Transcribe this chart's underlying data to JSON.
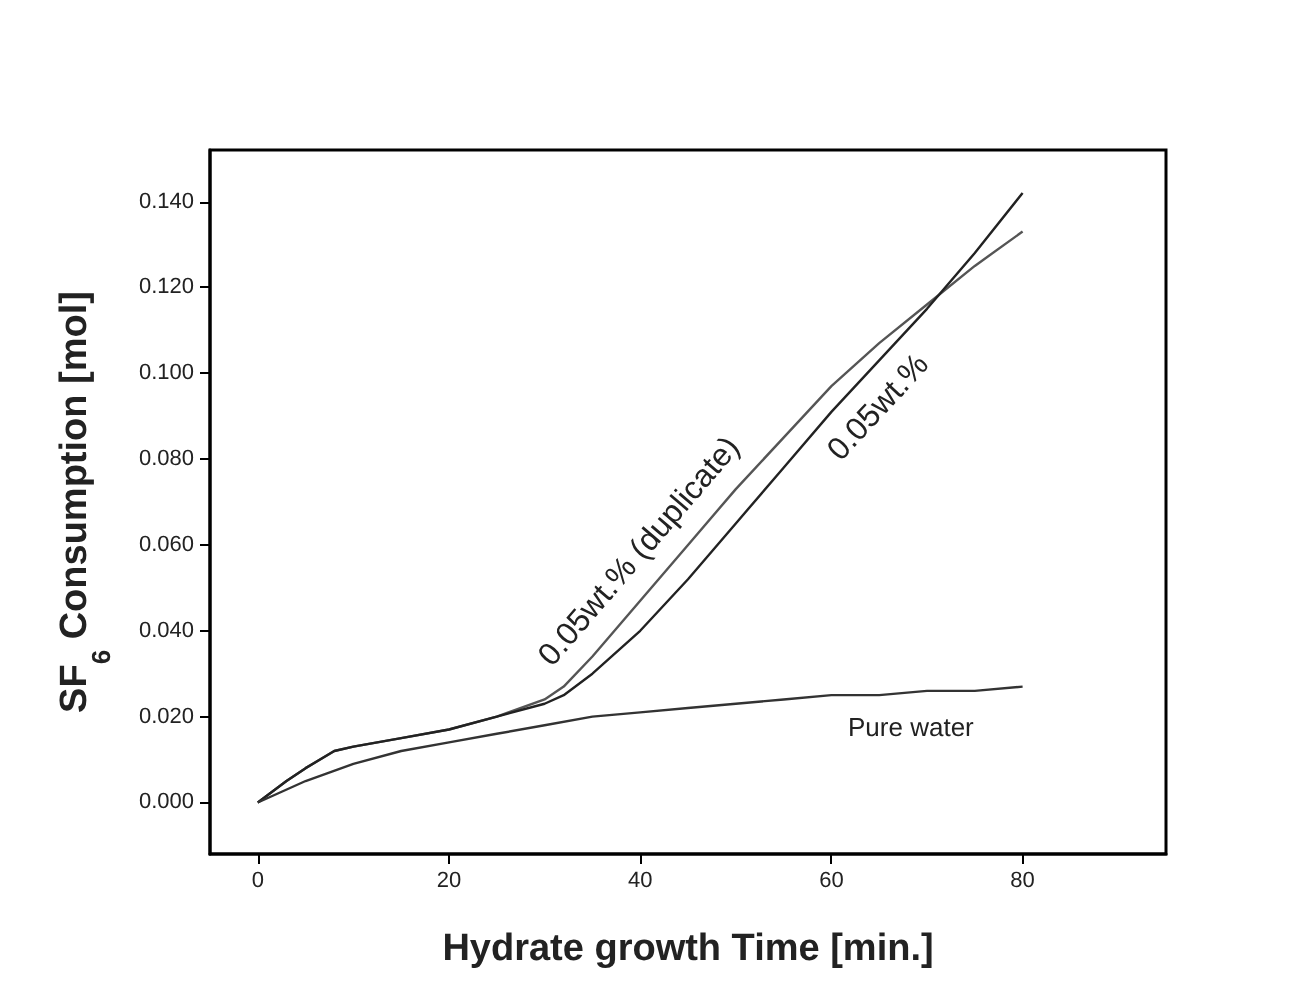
{
  "chart_data": {
    "type": "line",
    "xlabel": "Hydrate growth Time [min.]",
    "ylabel": "SF$_{6}$ Consumption [mol]",
    "xlim": [
      -5,
      95
    ],
    "xticks": [
      0,
      20,
      40,
      60,
      80
    ],
    "ylim": [
      -0.012,
      0.152
    ],
    "yticks": [
      {
        "value": 0,
        "label": "0.000"
      },
      {
        "value": 0.02,
        "label": "0.020"
      },
      {
        "value": 0.04,
        "label": "0.040"
      },
      {
        "value": 0.06,
        "label": "0.060"
      },
      {
        "value": 0.08,
        "label": "0.080"
      },
      {
        "value": 0.1,
        "label": "0.100"
      },
      {
        "value": 0.12,
        "label": "0.120"
      },
      {
        "value": 0.14,
        "label": "0.140"
      }
    ],
    "grid": false,
    "marker": "none",
    "line_style": "solid",
    "series": [
      {
        "name": "0.05wt.% (duplicate)",
        "color": "#555555",
        "x": [
          0,
          3,
          5,
          8,
          10,
          15,
          20,
          25,
          30,
          32,
          35,
          40,
          45,
          50,
          55,
          60,
          65,
          70,
          75,
          80
        ],
        "values": [
          0,
          0.005,
          0.008,
          0.012,
          0.013,
          0.015,
          0.017,
          0.02,
          0.024,
          0.027,
          0.034,
          0.047,
          0.06,
          0.073,
          0.085,
          0.097,
          0.107,
          0.116,
          0.125,
          0.133
        ]
      },
      {
        "name": "0.05wt.%",
        "color": "#222222",
        "x": [
          0,
          3,
          5,
          8,
          10,
          15,
          20,
          25,
          30,
          32,
          35,
          40,
          45,
          50,
          55,
          60,
          65,
          70,
          75,
          80
        ],
        "values": [
          0,
          0.005,
          0.008,
          0.012,
          0.013,
          0.015,
          0.017,
          0.02,
          0.023,
          0.025,
          0.03,
          0.04,
          0.052,
          0.065,
          0.078,
          0.091,
          0.103,
          0.115,
          0.128,
          0.142
        ]
      },
      {
        "name": "Pure water",
        "color": "#333333",
        "x": [
          0,
          5,
          10,
          15,
          20,
          25,
          30,
          35,
          40,
          45,
          50,
          55,
          60,
          65,
          70,
          75,
          80
        ],
        "values": [
          0,
          0.005,
          0.009,
          0.012,
          0.014,
          0.016,
          0.018,
          0.02,
          0.021,
          0.022,
          0.023,
          0.024,
          0.025,
          0.025,
          0.026,
          0.026,
          0.027
        ]
      }
    ]
  }
}
